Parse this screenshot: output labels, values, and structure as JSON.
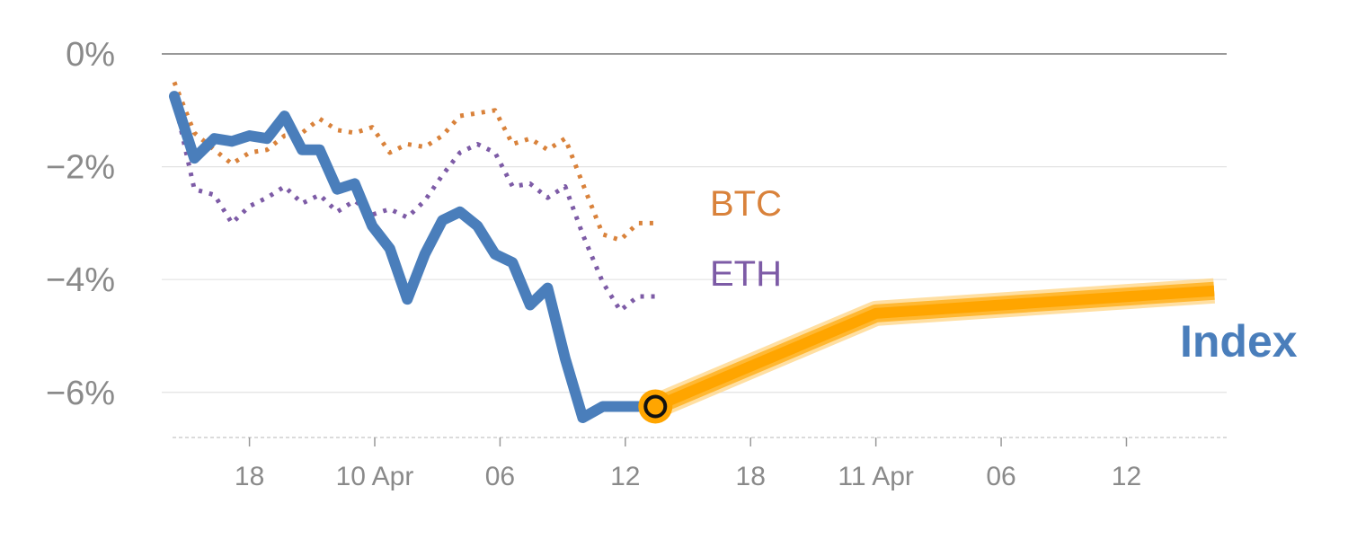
{
  "chart_data": {
    "type": "line",
    "title": "",
    "xlabel": "",
    "ylabel": "",
    "ylim": [
      -6.8,
      0
    ],
    "y_ticks": [
      0,
      -2,
      -4,
      -6
    ],
    "y_tick_labels": [
      "0%",
      "−2%",
      "−4%",
      "−6%"
    ],
    "x_range": [
      0,
      42.5
    ],
    "x_ticks": [
      3.5,
      8.5,
      13.5,
      18.5,
      23.5,
      28.5,
      33.5,
      38.5
    ],
    "x_tick_labels": [
      "18",
      "10 Apr",
      "06",
      "12",
      "18",
      "11 Apr",
      "06",
      "12"
    ],
    "series": [
      {
        "name": "BTC",
        "color": "#d9823b",
        "style": "dotted",
        "x": [
          0.5,
          1.3,
          2.1,
          2.8,
          3.5,
          4.2,
          4.9,
          5.6,
          6.3,
          7.0,
          7.7,
          8.4,
          9.1,
          9.8,
          10.5,
          11.2,
          11.9,
          12.6,
          13.3,
          14.0,
          14.7,
          15.4,
          16.1,
          16.8,
          17.6,
          18.3,
          19.0,
          19.7
        ],
        "values": [
          -0.5,
          -1.4,
          -1.7,
          -1.95,
          -1.75,
          -1.7,
          -1.45,
          -1.4,
          -1.15,
          -1.35,
          -1.4,
          -1.3,
          -1.75,
          -1.6,
          -1.65,
          -1.45,
          -1.1,
          -1.05,
          -1.0,
          -1.6,
          -1.5,
          -1.7,
          -1.5,
          -2.3,
          -3.2,
          -3.3,
          -3.0,
          -3.0
        ]
      },
      {
        "name": "ETH",
        "color": "#7d5ba6",
        "style": "dotted",
        "x": [
          0.5,
          1.3,
          2.1,
          2.8,
          3.5,
          4.2,
          4.9,
          5.6,
          6.3,
          7.0,
          7.7,
          8.4,
          9.1,
          9.8,
          10.5,
          11.2,
          11.9,
          12.6,
          13.3,
          14.0,
          14.7,
          15.4,
          16.1,
          16.8,
          17.6,
          18.3,
          19.0,
          19.7
        ],
        "values": [
          -0.8,
          -2.4,
          -2.5,
          -3.0,
          -2.7,
          -2.55,
          -2.35,
          -2.65,
          -2.5,
          -2.8,
          -2.6,
          -2.85,
          -2.75,
          -2.9,
          -2.6,
          -2.15,
          -1.75,
          -1.6,
          -1.75,
          -2.35,
          -2.3,
          -2.55,
          -2.35,
          -3.2,
          -4.05,
          -4.55,
          -4.3,
          -4.3
        ]
      },
      {
        "name": "Index",
        "color": "#4a7ebb",
        "style": "solid",
        "x": [
          0.5,
          1.3,
          2.1,
          2.8,
          3.5,
          4.2,
          4.9,
          5.6,
          6.3,
          7.0,
          7.7,
          8.4,
          9.1,
          9.8,
          10.5,
          11.2,
          11.9,
          12.6,
          13.3,
          14.0,
          14.7,
          15.4,
          16.1,
          16.8,
          17.6,
          18.3,
          19.0
        ],
        "values": [
          -0.75,
          -1.85,
          -1.5,
          -1.55,
          -1.45,
          -1.5,
          -1.1,
          -1.7,
          -1.7,
          -2.4,
          -2.3,
          -3.05,
          -3.45,
          -4.35,
          -3.55,
          -2.95,
          -2.8,
          -3.05,
          -3.55,
          -3.7,
          -4.45,
          -4.15,
          -5.4,
          -6.45,
          -6.25,
          -6.25,
          -6.25
        ]
      },
      {
        "name": "Index forecast",
        "color": "#ffa500",
        "style": "band",
        "x": [
          19.7,
          28.5,
          42.0
        ],
        "values": [
          -6.25,
          -4.6,
          -4.2
        ]
      }
    ],
    "marker": {
      "x": 19.7,
      "value": -6.25
    },
    "labels": {
      "btc": "BTC",
      "eth": "ETH",
      "index": "Index"
    }
  }
}
